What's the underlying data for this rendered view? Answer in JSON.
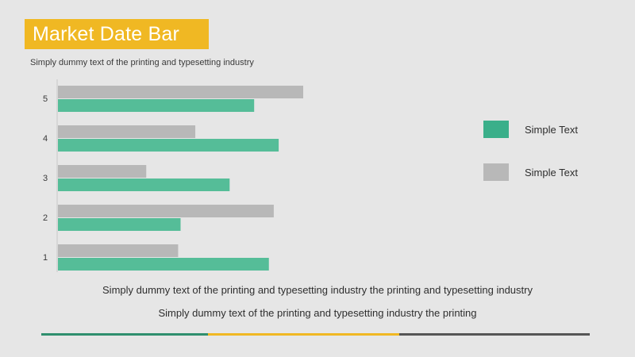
{
  "title": "Market Date Bar",
  "subtitle": "Simply dummy text of the printing and typesetting industry",
  "legend": [
    {
      "label": "Simple Text",
      "color": "#3aaf8a"
    },
    {
      "label": "Simple Text",
      "color": "#b8b8b8"
    }
  ],
  "footer": {
    "line1": "Simply dummy text of the printing and typesetting industry the printing and typesetting industry",
    "line2": "Simply dummy text of the printing and typesetting industry the printing"
  },
  "rule_colors": [
    "#2f8f6e",
    "#f0b823",
    "#555555"
  ],
  "chart_data": {
    "type": "bar",
    "orientation": "horizontal",
    "categories": [
      "1",
      "2",
      "3",
      "4",
      "5"
    ],
    "series": [
      {
        "color": "#b8b8b8",
        "values": [
          49,
          88,
          36,
          56,
          100
        ]
      },
      {
        "color": "#55bd98",
        "values": [
          86,
          50,
          70,
          90,
          80
        ]
      }
    ],
    "xlim": [
      0,
      100
    ],
    "grid": false,
    "legend_position": "right"
  }
}
